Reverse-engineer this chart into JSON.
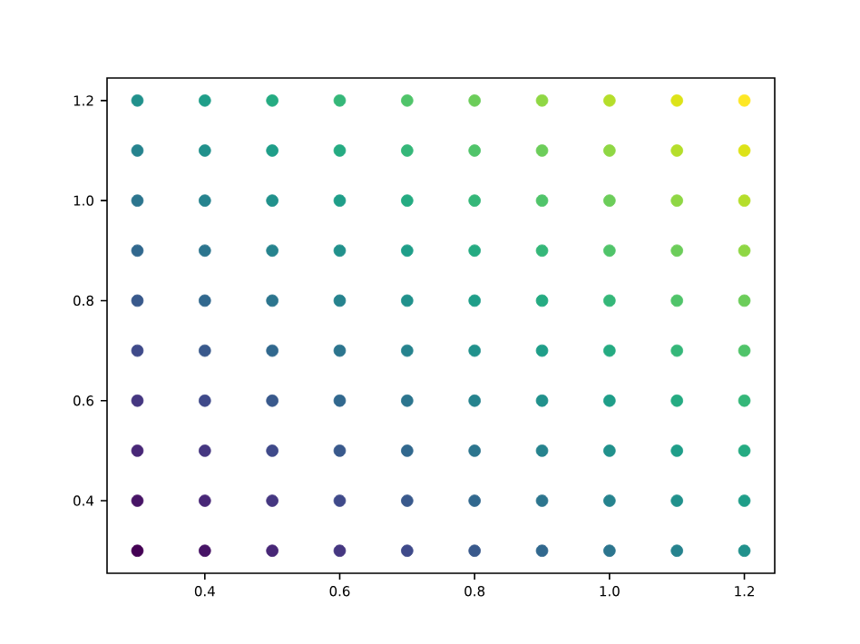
{
  "chart_data": {
    "type": "scatter",
    "marker": "circle",
    "xlim": [
      0.255,
      1.245
    ],
    "ylim": [
      0.255,
      1.245
    ],
    "xticks": [
      0.4,
      0.6,
      0.8,
      {
        "value": 1.0,
        "label": "1.0"
      },
      1.2
    ],
    "yticks": [
      0.4,
      0.6,
      0.8,
      {
        "value": 1.0,
        "label": "1.0"
      },
      1.2
    ],
    "series": [
      {
        "x": [
          0.3,
          0.3,
          0.3,
          0.3,
          0.3,
          0.3,
          0.3,
          0.3,
          0.3,
          0.3,
          0.4,
          0.4,
          0.4,
          0.4,
          0.4,
          0.4,
          0.4,
          0.4,
          0.4,
          0.4,
          0.5,
          0.5,
          0.5,
          0.5,
          0.5,
          0.5,
          0.5,
          0.5,
          0.5,
          0.5,
          0.6,
          0.6,
          0.6,
          0.6,
          0.6,
          0.6,
          0.6,
          0.6,
          0.6,
          0.6,
          0.7,
          0.7,
          0.7,
          0.7,
          0.7,
          0.7,
          0.7,
          0.7,
          0.7,
          0.7,
          0.8,
          0.8,
          0.8,
          0.8,
          0.8,
          0.8,
          0.8,
          0.8,
          0.8,
          0.8,
          0.9,
          0.9,
          0.9,
          0.9,
          0.9,
          0.9,
          0.9,
          0.9,
          0.9,
          0.9,
          1.0,
          1.0,
          1.0,
          1.0,
          1.0,
          1.0,
          1.0,
          1.0,
          1.0,
          1.0,
          1.1,
          1.1,
          1.1,
          1.1,
          1.1,
          1.1,
          1.1,
          1.1,
          1.1,
          1.1,
          1.2,
          1.2,
          1.2,
          1.2,
          1.2,
          1.2,
          1.2,
          1.2,
          1.2,
          1.2
        ],
        "values": [
          0.3,
          0.4,
          0.5,
          0.6,
          0.7,
          0.8,
          0.9,
          1.0,
          1.1,
          1.2,
          0.3,
          0.4,
          0.5,
          0.6,
          0.7,
          0.8,
          0.9,
          1.0,
          1.1,
          1.2,
          0.3,
          0.4,
          0.5,
          0.6,
          0.7,
          0.8,
          0.9,
          1.0,
          1.1,
          1.2,
          0.3,
          0.4,
          0.5,
          0.6,
          0.7,
          0.8,
          0.9,
          1.0,
          1.1,
          1.2,
          0.3,
          0.4,
          0.5,
          0.6,
          0.7,
          0.8,
          0.9,
          1.0,
          1.1,
          1.2,
          0.3,
          0.4,
          0.5,
          0.6,
          0.7,
          0.8,
          0.9,
          1.0,
          1.1,
          1.2,
          0.3,
          0.4,
          0.5,
          0.6,
          0.7,
          0.8,
          0.9,
          1.0,
          1.1,
          1.2,
          0.3,
          0.4,
          0.5,
          0.6,
          0.7,
          0.8,
          0.9,
          1.0,
          1.1,
          1.2,
          0.3,
          0.4,
          0.5,
          0.6,
          0.7,
          0.8,
          0.9,
          1.0,
          1.1,
          1.2,
          0.3,
          0.4,
          0.5,
          0.6,
          0.7,
          0.8,
          0.9,
          1.0,
          1.1,
          1.2
        ],
        "colors": [
          "#440154",
          "#471466",
          "#482777",
          "#453781",
          "#3f4a8a",
          "#39598c",
          "#31688e",
          "#2c758e",
          "#26838e",
          "#21918c",
          "#471466",
          "#482777",
          "#453781",
          "#3f4a8a",
          "#39598c",
          "#31688e",
          "#2c758e",
          "#26838e",
          "#21918c",
          "#1f9e89",
          "#482777",
          "#453781",
          "#3f4a8a",
          "#39598c",
          "#31688e",
          "#2c758e",
          "#26838e",
          "#21918c",
          "#1f9e89",
          "#25ab82",
          "#453781",
          "#3f4a8a",
          "#39598c",
          "#31688e",
          "#2c758e",
          "#26838e",
          "#21918c",
          "#1f9e89",
          "#25ab82",
          "#35b779",
          "#3f4a8a",
          "#39598c",
          "#31688e",
          "#2c758e",
          "#26838e",
          "#21918c",
          "#1f9e89",
          "#25ab82",
          "#35b779",
          "#50c46a",
          "#39598c",
          "#31688e",
          "#2c758e",
          "#26838e",
          "#21918c",
          "#1f9e89",
          "#25ab82",
          "#35b779",
          "#50c46a",
          "#6ccd5a",
          "#31688e",
          "#2c758e",
          "#26838e",
          "#21918c",
          "#1f9e89",
          "#25ab82",
          "#35b779",
          "#50c46a",
          "#6ccd5a",
          "#8fd744",
          "#2c758e",
          "#26838e",
          "#21918c",
          "#1f9e89",
          "#25ab82",
          "#35b779",
          "#50c46a",
          "#6ccd5a",
          "#8fd744",
          "#b5de2b",
          "#26838e",
          "#21918c",
          "#1f9e89",
          "#25ab82",
          "#35b779",
          "#50c46a",
          "#6ccd5a",
          "#8fd744",
          "#b5de2b",
          "#dde318",
          "#21918c",
          "#1f9e89",
          "#25ab82",
          "#35b779",
          "#50c46a",
          "#6ccd5a",
          "#8fd744",
          "#b5de2b",
          "#dde318",
          "#fde725"
        ]
      }
    ]
  }
}
